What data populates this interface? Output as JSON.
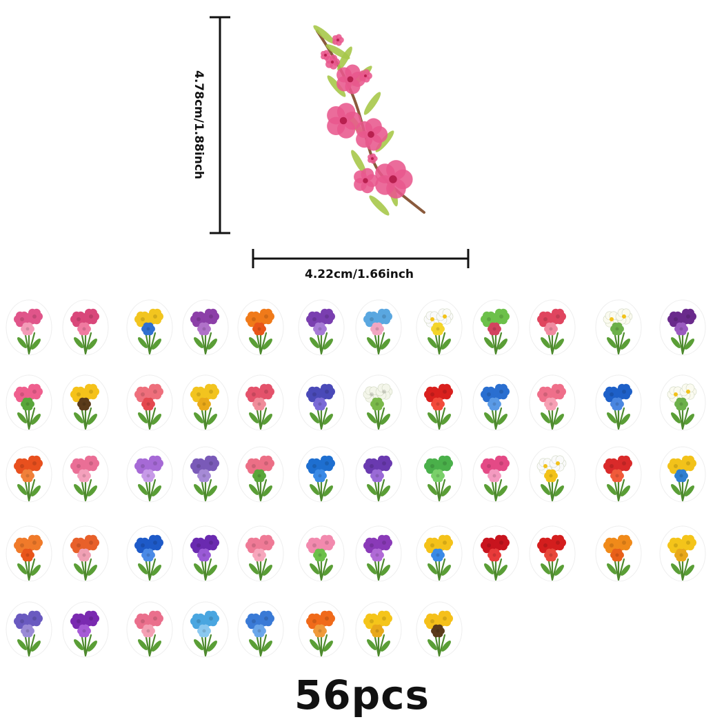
{
  "dimensions": {
    "height_label": "4.78cm/1.88inch",
    "width_label": "4.22cm/1.66inch"
  },
  "featured_sticker": {
    "icon": "peach-blossom-branch-icon",
    "petal_color": "#e8588d",
    "leaf_color": "#a7c84a",
    "stem_color": "#8a5a3c"
  },
  "stickers": [
    {
      "icon": "pink-carnation-bouquet-icon",
      "color": "#e0558a",
      "color2": "#f49bb8"
    },
    {
      "icon": "pink-chrysanthemum-bouquet-icon",
      "color": "#d9477a",
      "color2": "#f07aa0"
    },
    {
      "icon": "yellow-rose-bouquet-icon",
      "color": "#f2c51f",
      "color2": "#2f6fd0"
    },
    {
      "icon": "purple-rose-icon",
      "color": "#8c3fa8",
      "color2": "#b071c9"
    },
    {
      "icon": "orange-hibiscus-icon",
      "color": "#f07a1a",
      "color2": "#e8551a"
    },
    {
      "icon": "purple-clematis-icon",
      "color": "#7a3fb0",
      "color2": "#a67ad6"
    },
    {
      "icon": "blue-lily-icon",
      "color": "#5aa7e0",
      "color2": "#f2a6c2"
    },
    {
      "icon": "white-daisy-bouquet-icon",
      "color": "#fafafa",
      "color2": "#f4d52a"
    },
    {
      "icon": "green-rose-icon",
      "color": "#6cc04a",
      "color2": "#d3425f"
    },
    {
      "icon": "calla-lily-icon",
      "color": "#e0455f",
      "color2": "#f08aa0"
    },
    {
      "icon": "white-jasmine-icon",
      "color": "#fbfbf0",
      "color2": "#6cb04a"
    },
    {
      "icon": "purple-orchid-icon",
      "color": "#6a2a8c",
      "color2": "#9a5ac0"
    },
    {
      "icon": "pink-lotus-icon",
      "color": "#ef5f8e",
      "color2": "#58a63a"
    },
    {
      "icon": "sunflower-bouquet-icon",
      "color": "#f5c21a",
      "color2": "#5a3a1a"
    },
    {
      "icon": "pink-peony-icon",
      "color": "#ee6f7c",
      "color2": "#e4484f"
    },
    {
      "icon": "yellow-rose-icon",
      "color": "#f2c41f",
      "color2": "#e9a91a"
    },
    {
      "icon": "pink-peony-bouquet-icon",
      "color": "#e4526b",
      "color2": "#f08c9a"
    },
    {
      "icon": "blue-clematis-icon",
      "color": "#4a4ab8",
      "color2": "#7a6ad6"
    },
    {
      "icon": "white-lily-icon",
      "color": "#f4f6ea",
      "color2": "#7ab84a"
    },
    {
      "icon": "red-gerbera-icon",
      "color": "#d9201e",
      "color2": "#f24a3a"
    },
    {
      "icon": "blue-carnation-icon",
      "color": "#2a6fd0",
      "color2": "#5a9ae6"
    },
    {
      "icon": "pink-camellia-icon",
      "color": "#ef6f8a",
      "color2": "#f7a0b4"
    },
    {
      "icon": "blue-anemone-icon",
      "color": "#1e60c8",
      "color2": "#4a86e0"
    },
    {
      "icon": "white-jasmine-sprig-icon",
      "color": "#fbfbf0",
      "color2": "#6cb04a"
    },
    {
      "icon": "orange-lily-icon",
      "color": "#e8501e",
      "color2": "#f0803a"
    },
    {
      "icon": "pink-gladiolus-icon",
      "color": "#ea6f96",
      "color2": "#f4a0bc"
    },
    {
      "icon": "purple-petunia-icon",
      "color": "#a66ad6",
      "color2": "#c79ae8"
    },
    {
      "icon": "lavender-icon",
      "color": "#7a5ab8",
      "color2": "#a68ad6"
    },
    {
      "icon": "pink-carnation-bouquet-icon",
      "color": "#ec6f86",
      "color2": "#5aa63a"
    },
    {
      "icon": "blue-tulip-icon",
      "color": "#1e6fd0",
      "color2": "#3a8ae6"
    },
    {
      "icon": "purple-lisianthus-icon",
      "color": "#6a3ab0",
      "color2": "#9a6ad6"
    },
    {
      "icon": "green-carnation-icon",
      "color": "#4ab04a",
      "color2": "#7ad06a"
    },
    {
      "icon": "pink-stargazer-lily-icon",
      "color": "#e44a86",
      "color2": "#f49ac0"
    },
    {
      "icon": "white-daisy-icon",
      "color": "#fafafa",
      "color2": "#f2c21a"
    },
    {
      "icon": "red-dahlia-icon",
      "color": "#d92a2a",
      "color2": "#f05a3a"
    },
    {
      "icon": "yellow-marigold-icon",
      "color": "#f2c21a",
      "color2": "#2f7fd0"
    },
    {
      "icon": "orange-tiger-lily-icon",
      "color": "#f07a2a",
      "color2": "#e8551a"
    },
    {
      "icon": "orange-rose-icon",
      "color": "#e8602a",
      "color2": "#f0a0b4"
    },
    {
      "icon": "blue-anemone-icon",
      "color": "#1e5ac8",
      "color2": "#4a8ae6"
    },
    {
      "icon": "purple-bellflower-icon",
      "color": "#6a2ab0",
      "color2": "#9a5ad6"
    },
    {
      "icon": "pink-carnation-icon",
      "color": "#ef7a96",
      "color2": "#f7a6bc"
    },
    {
      "icon": "pink-foxglove-icon",
      "color": "#f28aae",
      "color2": "#6cc04a"
    },
    {
      "icon": "purple-aster-icon",
      "color": "#8a3ab8",
      "color2": "#b06ad6"
    },
    {
      "icon": "yellow-lily-icon",
      "color": "#f4c21a",
      "color2": "#3a8ae6"
    },
    {
      "icon": "red-rose-icon",
      "color": "#c8141e",
      "color2": "#e83a3a"
    },
    {
      "icon": "red-rose-icon",
      "color": "#d41e1e",
      "color2": "#e8483a"
    },
    {
      "icon": "orange-marigold-icon",
      "color": "#f08a1a",
      "color2": "#e8601a"
    },
    {
      "icon": "yellow-chrysanthemum-icon",
      "color": "#f4c41a",
      "color2": "#e8a81a"
    },
    {
      "icon": "purple-cornflower-icon",
      "color": "#6a5ac0",
      "color2": "#9a8ad6"
    },
    {
      "icon": "purple-morning-glory-icon",
      "color": "#7a2ab0",
      "color2": "#a65ad6"
    },
    {
      "icon": "pink-lily-icon",
      "color": "#ea6f8c",
      "color2": "#f4a0b4"
    },
    {
      "icon": "blue-morning-glory-icon",
      "color": "#4aa6e0",
      "color2": "#8ac8f0"
    },
    {
      "icon": "blue-hydrangea-icon",
      "color": "#3a7ad6",
      "color2": "#6aa6ea"
    },
    {
      "icon": "orange-nasturtium-icon",
      "color": "#f06a1a",
      "color2": "#f09a3a"
    },
    {
      "icon": "yellow-daisy-icon",
      "color": "#f5c51a",
      "color2": "#e8a81a"
    },
    {
      "icon": "sunflower-icon",
      "color": "#f5c01a",
      "color2": "#5a3a1a"
    }
  ],
  "count_label": "56pcs"
}
